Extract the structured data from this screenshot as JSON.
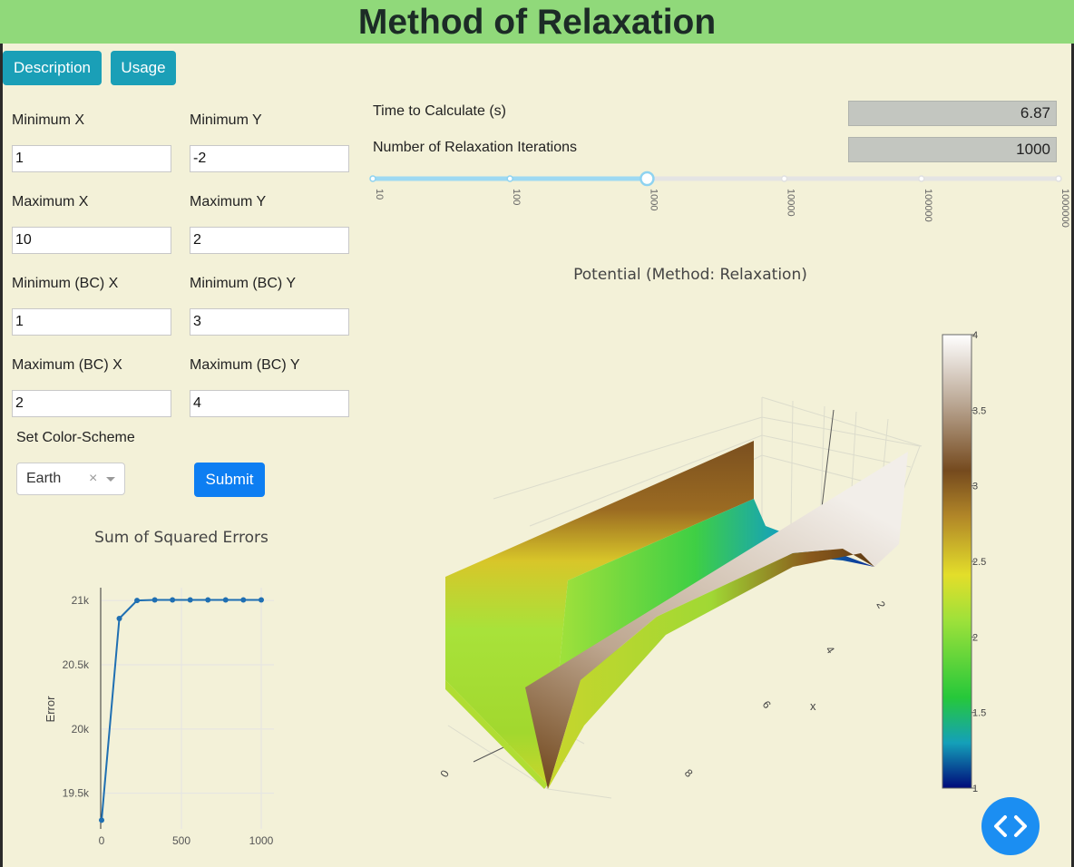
{
  "page": {
    "title": "Method of Relaxation"
  },
  "nav": {
    "description_label": "Description",
    "usage_label": "Usage"
  },
  "form": {
    "min_x_label": "Minimum X",
    "min_x_value": "1",
    "min_y_label": "Minimum Y",
    "min_y_value": "-2",
    "max_x_label": "Maximum X",
    "max_x_value": "10",
    "max_y_label": "Maximum Y",
    "max_y_value": "2",
    "min_bc_x_label": "Minimum (BC) X",
    "min_bc_x_value": "1",
    "min_bc_y_label": "Minimum (BC) Y",
    "min_bc_y_value": "3",
    "max_bc_x_label": "Maximum (BC) X",
    "max_bc_x_value": "2",
    "max_bc_y_label": "Maximum (BC) Y",
    "max_bc_y_value": "4",
    "color_scheme_label": "Set Color-Scheme",
    "color_scheme_value": "Earth",
    "clear_glyph": "×",
    "submit_label": "Submit"
  },
  "results": {
    "time_label": "Time to Calculate (s)",
    "time_value": "6.87",
    "iterations_label": "Number of Relaxation Iterations",
    "iterations_value": "1000",
    "slider_marks": [
      "10",
      "100",
      "1000",
      "10000",
      "100000",
      "1000000"
    ],
    "slider_selected": "1000"
  },
  "colors": {
    "header": "#90d97a",
    "background": "#f3f1d8",
    "teal_button": "#1a9fb7",
    "primary": "#0d7ef2",
    "line": "#1f6fb2"
  },
  "icons": {
    "clear": "close-icon",
    "dropdown": "chevron-down-icon",
    "fab": "code-brackets-icon"
  },
  "chart_data": [
    {
      "type": "line",
      "title": "Sum of Squared Errors",
      "xlabel": "",
      "ylabel": "Error",
      "x": [
        0,
        111,
        222,
        333,
        444,
        555,
        666,
        777,
        888,
        1000
      ],
      "series": [
        {
          "values": [
            19290,
            20860,
            21000,
            21005,
            21005,
            21005,
            21005,
            21005,
            21005,
            21005
          ]
        }
      ],
      "xlim": [
        0,
        1000
      ],
      "ylim": [
        19300,
        21100
      ],
      "xticks": [
        "0",
        "500",
        "1000"
      ],
      "yticks": [
        "19.5k",
        "20k",
        "20.5k",
        "21k"
      ],
      "grid": true
    },
    {
      "type": "surface",
      "title": "Potential (Method: Relaxation)",
      "x_axis_title": "x",
      "x_ticks": [
        "2",
        "4",
        "6",
        "8"
      ],
      "y_ticks": [
        "0"
      ],
      "colorbar": {
        "min": 1,
        "max": 4,
        "ticks": [
          "1",
          "1.5",
          "2",
          "2.5",
          "3",
          "3.5",
          "4"
        ],
        "colorscale": "Earth"
      }
    }
  ]
}
